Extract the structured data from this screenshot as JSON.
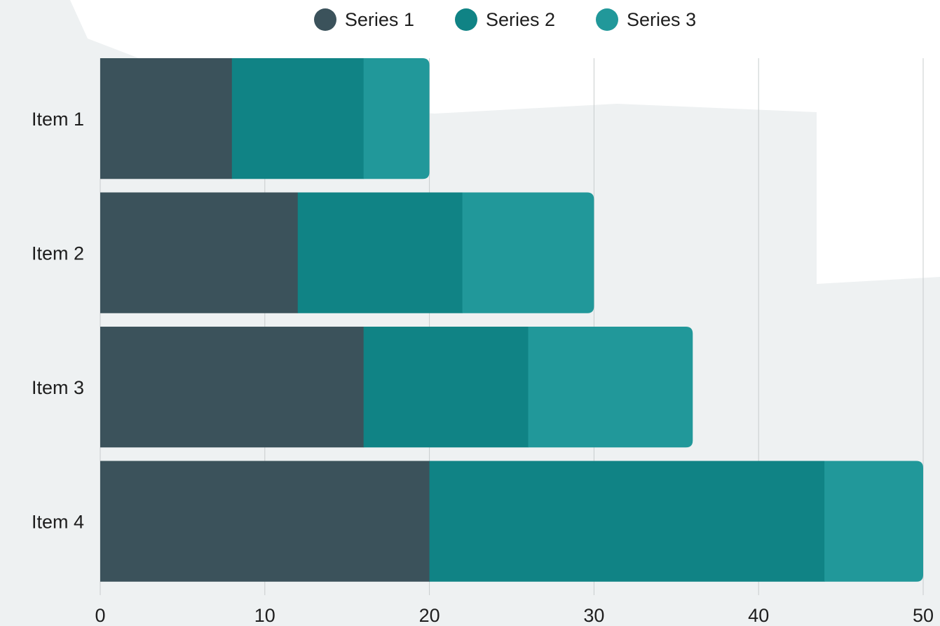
{
  "chart_data": {
    "type": "bar",
    "orientation": "horizontal",
    "stacked": true,
    "categories": [
      "Item 1",
      "Item 2",
      "Item 3",
      "Item 4"
    ],
    "series": [
      {
        "name": "Series 1",
        "values": [
          8,
          12,
          16,
          20
        ],
        "color": "#3b525b"
      },
      {
        "name": "Series 2",
        "values": [
          8,
          10,
          10,
          24
        ],
        "color": "#108385"
      },
      {
        "name": "Series 3",
        "values": [
          4,
          8,
          10,
          6
        ],
        "color": "#21989a"
      }
    ],
    "xlim": [
      0,
      50
    ],
    "x_ticks": [
      "0",
      "10",
      "20",
      "30",
      "40",
      "50"
    ],
    "grid": "vertical",
    "legend_position": "top-center",
    "title": "",
    "xlabel": "",
    "ylabel": ""
  }
}
